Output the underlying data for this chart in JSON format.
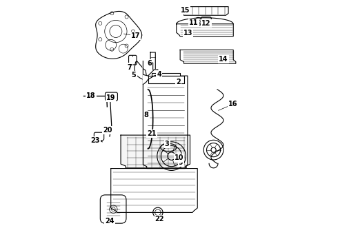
{
  "background_color": "#ffffff",
  "line_color": "#000000",
  "figsize": [
    4.9,
    3.6
  ],
  "dpi": 100,
  "font_size": 7
}
